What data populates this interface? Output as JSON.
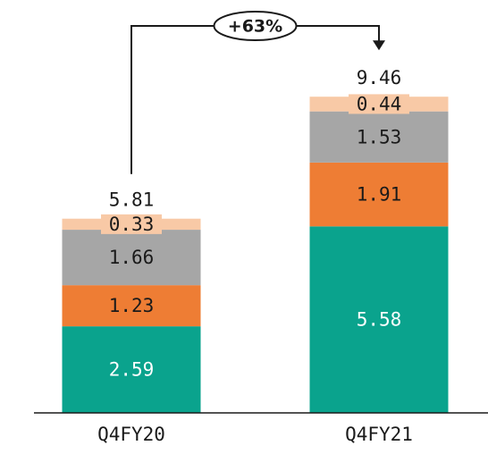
{
  "chart_data": {
    "type": "bar",
    "stacked": true,
    "categories": [
      "Q4FY20",
      "Q4FY21"
    ],
    "series": [
      {
        "values": [
          2.59,
          5.58
        ],
        "color": "#0aa38d",
        "label_color": "#ffffff"
      },
      {
        "values": [
          1.23,
          1.91
        ],
        "color": "#ee7d34",
        "label_color": "#1a1a1a"
      },
      {
        "values": [
          1.66,
          1.53
        ],
        "color": "#a6a6a6",
        "label_color": "#1a1a1a"
      },
      {
        "values": [
          0.33,
          0.44
        ],
        "color": "#f8c9a6",
        "label_color": "#1a1a1a"
      }
    ],
    "totals": [
      "5.81",
      "9.46"
    ],
    "segment_labels": [
      [
        "2.59",
        "1.23",
        "1.66",
        "0.33"
      ],
      [
        "5.58",
        "1.91",
        "1.53",
        "0.44"
      ]
    ],
    "annotation": {
      "text": "+63%"
    },
    "title": "",
    "xlabel": "",
    "ylabel": "",
    "legend": "none",
    "grid": false
  }
}
